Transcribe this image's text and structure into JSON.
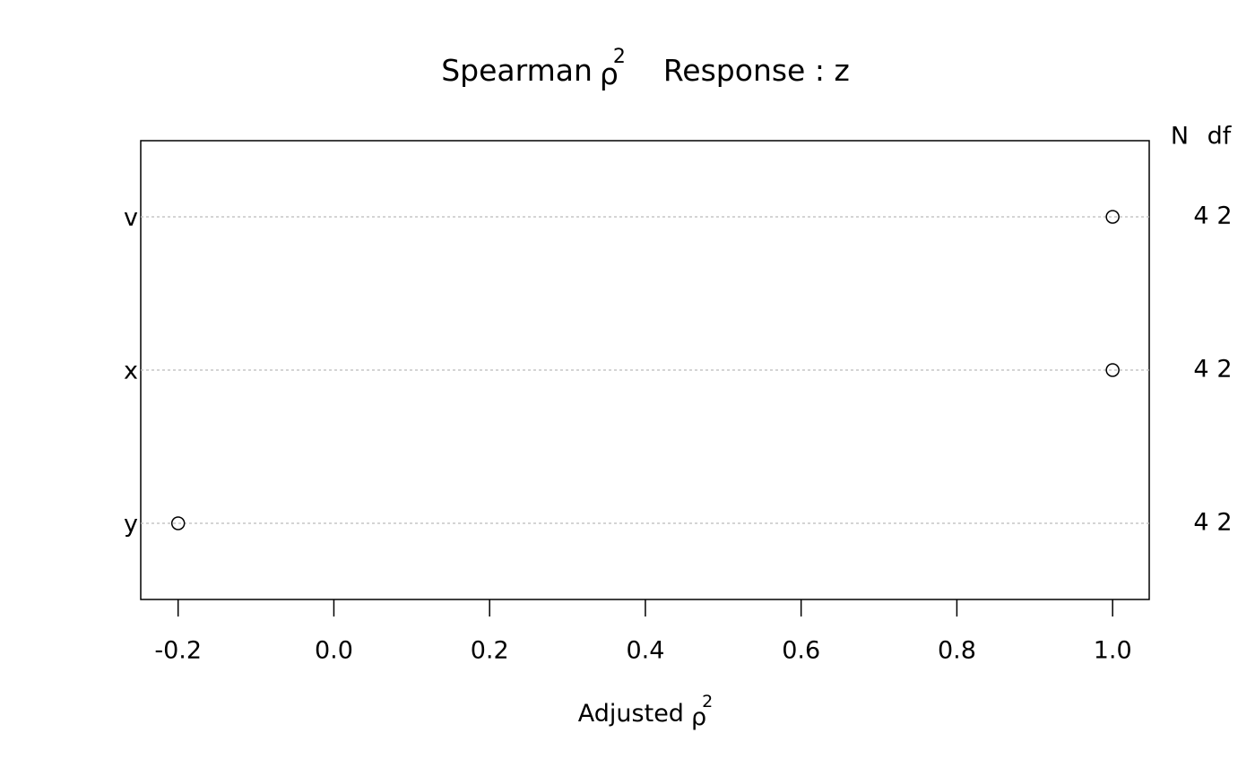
{
  "chart_data": {
    "type": "dot",
    "title": {
      "text": "Spearman",
      "symbol": "ρ",
      "superscript": "2",
      "response": "Response : z"
    },
    "x_label": {
      "text": "Adjusted",
      "symbol": "ρ",
      "superscript": "2"
    },
    "categories": [
      "v",
      "x",
      "y"
    ],
    "values": [
      1.0,
      1.0,
      -0.2
    ],
    "n_label": "N",
    "df_label": "df",
    "n": [
      4,
      4,
      4
    ],
    "df": [
      2,
      2,
      2
    ],
    "color": "#000000",
    "xlim": [
      -0.248,
      1.047
    ],
    "xticks": [
      -0.2,
      {
        "value": 0,
        "label": "0.0"
      },
      0.2,
      0.4,
      0.6,
      0.8,
      {
        "value": 1,
        "label": "1.0"
      }
    ]
  }
}
